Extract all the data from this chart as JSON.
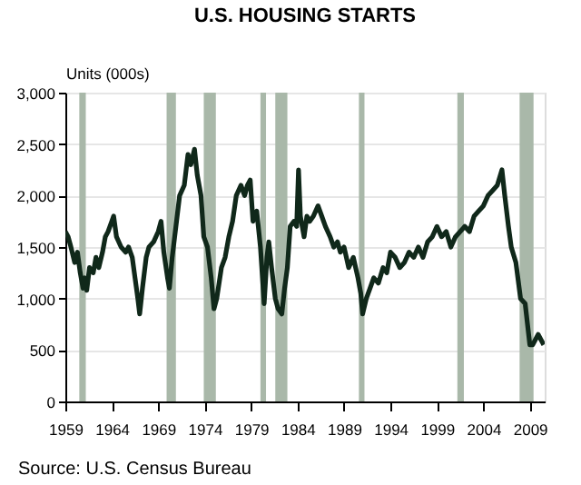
{
  "chart_data": {
    "type": "line",
    "title": "U.S. HOUSING STARTS",
    "ylabel": "Units (000s)",
    "annotations": [
      "Source: U.S. Census Bureau"
    ],
    "xlim": [
      1959,
      2010.6
    ],
    "xticks": [
      1959,
      1964,
      1969,
      1974,
      1979,
      1984,
      1989,
      1994,
      1999,
      2004,
      2009
    ],
    "ylim": [
      0,
      3000
    ],
    "yticks": [
      0,
      500,
      {
        "value": 1000,
        "label": "1,000"
      },
      {
        "value": 1500,
        "label": "1,500"
      },
      {
        "value": 2000,
        "label": "2,000"
      },
      {
        "value": 2500,
        "label": "2,500"
      },
      {
        "value": 3000,
        "label": "3,000"
      }
    ],
    "grid": "y",
    "bands": [
      {
        "axis": "x",
        "from": 1960.5,
        "to": 1961.2,
        "color": "#a9b8a9"
      },
      {
        "axis": "x",
        "from": 1969.9,
        "to": 1970.9,
        "color": "#a9b8a9"
      },
      {
        "axis": "x",
        "from": 1973.9,
        "to": 1975.2,
        "color": "#a9b8a9"
      },
      {
        "axis": "x",
        "from": 1980.0,
        "to": 1980.6,
        "color": "#a9b8a9"
      },
      {
        "axis": "x",
        "from": 1981.6,
        "to": 1982.9,
        "color": "#a9b8a9"
      },
      {
        "axis": "x",
        "from": 1990.6,
        "to": 1991.2,
        "color": "#a9b8a9"
      },
      {
        "axis": "x",
        "from": 2001.2,
        "to": 2001.9,
        "color": "#a9b8a9"
      },
      {
        "axis": "x",
        "from": 2007.9,
        "to": 2009.4,
        "color": "#a9b8a9"
      }
    ],
    "series": [
      {
        "color": "#10281a",
        "x": [
          1959.0,
          1959.3,
          1959.6,
          1960.0,
          1960.3,
          1960.6,
          1960.9,
          1961.1,
          1961.3,
          1961.6,
          1962.0,
          1962.3,
          1962.6,
          1963.0,
          1963.3,
          1963.6,
          1964.0,
          1964.2,
          1964.5,
          1965.0,
          1965.5,
          1965.8,
          1966.2,
          1966.5,
          1966.8,
          1967.0,
          1967.3,
          1967.7,
          1968.0,
          1968.5,
          1969.0,
          1969.3,
          1969.6,
          1970.0,
          1970.2,
          1970.5,
          1970.9,
          1971.3,
          1971.8,
          1972.2,
          1972.5,
          1972.9,
          1973.2,
          1973.6,
          1973.9,
          1974.3,
          1974.7,
          1975.0,
          1975.3,
          1975.8,
          1976.2,
          1976.6,
          1977.0,
          1977.4,
          1977.9,
          1978.3,
          1978.6,
          1978.9,
          1979.2,
          1979.6,
          1980.0,
          1980.4,
          1980.7,
          1980.9,
          1981.2,
          1981.6,
          1981.9,
          1982.3,
          1982.6,
          1982.9,
          1983.2,
          1983.6,
          1983.9,
          1984.1,
          1984.3,
          1984.7,
          1985.0,
          1985.3,
          1985.7,
          1986.2,
          1986.6,
          1987.0,
          1987.5,
          1987.9,
          1988.3,
          1988.6,
          1989.0,
          1989.5,
          1990.0,
          1990.5,
          1990.8,
          1991.0,
          1991.4,
          1991.8,
          1992.2,
          1992.7,
          1993.2,
          1993.6,
          1994.0,
          1994.5,
          1995.0,
          1995.5,
          1996.0,
          1996.5,
          1997.0,
          1997.5,
          1998.0,
          1998.5,
          1999.0,
          1999.5,
          2000.0,
          2000.5,
          2001.0,
          2001.5,
          2002.0,
          2002.5,
          2003.0,
          2003.5,
          2004.0,
          2004.5,
          2005.0,
          2005.5,
          2006.0,
          2006.3,
          2006.7,
          2007.0,
          2007.5,
          2008.0,
          2008.5,
          2009.0,
          2009.3,
          2009.6,
          2009.9,
          2010.2,
          2010.5
        ],
        "values": [
          1650,
          1600,
          1500,
          1350,
          1450,
          1250,
          1100,
          1200,
          1080,
          1300,
          1250,
          1400,
          1300,
          1450,
          1600,
          1650,
          1750,
          1800,
          1600,
          1500,
          1450,
          1500,
          1400,
          1200,
          1000,
          850,
          1100,
          1400,
          1500,
          1550,
          1650,
          1750,
          1450,
          1200,
          1100,
          1400,
          1700,
          2000,
          2100,
          2400,
          2300,
          2450,
          2200,
          2000,
          1600,
          1500,
          1200,
          900,
          1000,
          1300,
          1400,
          1600,
          1750,
          2000,
          2100,
          2000,
          2100,
          2150,
          1750,
          1850,
          1500,
          950,
          1400,
          1550,
          1300,
          1000,
          900,
          850,
          1100,
          1300,
          1700,
          1750,
          1700,
          2250,
          1800,
          1600,
          1800,
          1750,
          1800,
          1900,
          1800,
          1700,
          1600,
          1500,
          1550,
          1450,
          1500,
          1300,
          1400,
          1200,
          1050,
          850,
          1000,
          1100,
          1200,
          1150,
          1300,
          1250,
          1450,
          1400,
          1300,
          1350,
          1450,
          1400,
          1500,
          1400,
          1550,
          1600,
          1700,
          1600,
          1650,
          1500,
          1600,
          1650,
          1700,
          1650,
          1800,
          1850,
          1900,
          2000,
          2050,
          2100,
          2250,
          2000,
          1700,
          1500,
          1350,
          1000,
          950,
          550,
          550,
          600,
          650,
          600,
          550
        ]
      }
    ]
  }
}
